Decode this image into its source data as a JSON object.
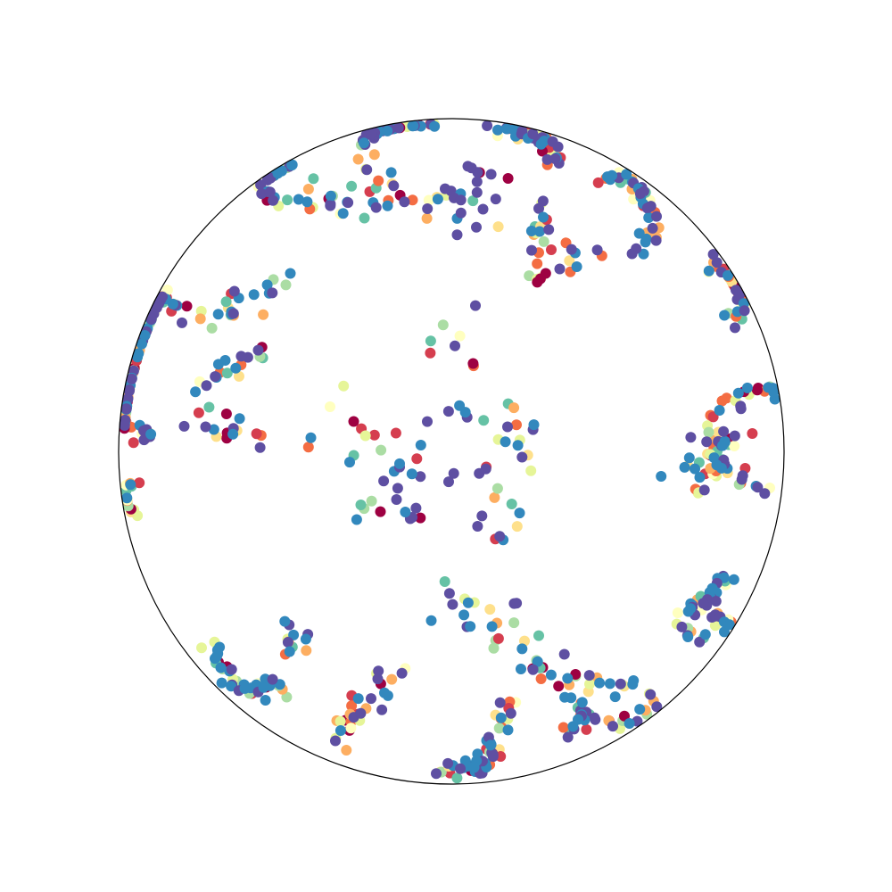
{
  "chart_data": {
    "type": "scatter",
    "title": "",
    "xlabel": "",
    "ylabel": "",
    "projection": "poincare-disk",
    "xlim": [
      -1,
      1
    ],
    "ylim": [
      -1,
      1
    ],
    "boundary": "unit-circle",
    "boundary_color": "#000000",
    "grid": false,
    "axes_visible": false,
    "legend": "none",
    "colormap": "Spectral",
    "colormap_colors": [
      "#9e0142",
      "#d53e4f",
      "#f46d43",
      "#fdae61",
      "#fee08b",
      "#ffffbf",
      "#e6f598",
      "#abdda4",
      "#66c2a5",
      "#3288bd",
      "#5e4fa2"
    ],
    "marker": "circle",
    "clusters": [
      {
        "name": "",
        "kind": "arc",
        "cx": -0.89,
        "cy": 0.26,
        "r": 0.2,
        "a0": 60,
        "a1": 270,
        "n": 90,
        "jitter": 0.018
      },
      {
        "name": "",
        "kind": "line",
        "x0": -0.73,
        "y0": 0.39,
        "x1": -0.5,
        "y1": 0.5,
        "n": 22,
        "jitter": 0.03
      },
      {
        "name": "",
        "kind": "line",
        "x0": -0.75,
        "y0": 0.2,
        "x1": -0.55,
        "y1": 0.3,
        "n": 18,
        "jitter": 0.03
      },
      {
        "name": "",
        "kind": "line",
        "x0": -0.78,
        "y0": 0.1,
        "x1": -0.58,
        "y1": 0.04,
        "n": 16,
        "jitter": 0.02
      },
      {
        "name": "",
        "kind": "arc",
        "cx": -0.49,
        "cy": 0.84,
        "r": 0.09,
        "a0": 90,
        "a1": 270,
        "n": 22,
        "jitter": 0.015
      },
      {
        "name": "",
        "kind": "line",
        "x0": -0.46,
        "y0": 0.75,
        "x1": -0.27,
        "y1": 0.74,
        "n": 18,
        "jitter": 0.03
      },
      {
        "name": "",
        "kind": "arc",
        "cx": -0.13,
        "cy": 0.84,
        "r": 0.16,
        "a0": 60,
        "a1": 160,
        "n": 34,
        "jitter": 0.012
      },
      {
        "name": "",
        "kind": "line",
        "x0": -0.25,
        "y0": 0.86,
        "x1": -0.15,
        "y1": 0.73,
        "n": 14,
        "jitter": 0.03
      },
      {
        "name": "",
        "kind": "line",
        "x0": -0.12,
        "y0": 0.77,
        "x1": 0.02,
        "y1": 0.74,
        "n": 12,
        "jitter": 0.03
      },
      {
        "name": "",
        "kind": "arc",
        "cx": 0.17,
        "cy": 0.81,
        "r": 0.16,
        "a0": 100,
        "a1": 20,
        "n": 44,
        "jitter": 0.015
      },
      {
        "name": "",
        "kind": "line",
        "x0": 0.27,
        "y0": 0.75,
        "x1": 0.26,
        "y1": 0.5,
        "n": 22,
        "jitter": 0.015
      },
      {
        "name": "",
        "kind": "line",
        "x0": 0.1,
        "y0": 0.86,
        "x1": 0.08,
        "y1": 0.67,
        "n": 16,
        "jitter": 0.04
      },
      {
        "name": "",
        "kind": "arc",
        "cx": 0.49,
        "cy": 0.71,
        "r": 0.11,
        "a0": 110,
        "a1": -60,
        "n": 42,
        "jitter": 0.015
      },
      {
        "name": "",
        "kind": "line",
        "x0": 0.41,
        "y0": 0.64,
        "x1": 0.33,
        "y1": 0.58,
        "n": 10,
        "jitter": 0.03
      },
      {
        "name": "",
        "kind": "arc",
        "cx": 0.8,
        "cy": 0.47,
        "r": 0.08,
        "a0": 110,
        "a1": -70,
        "n": 36,
        "jitter": 0.018
      },
      {
        "name": "",
        "kind": "arc",
        "cx": 0.94,
        "cy": 0.04,
        "r": 0.15,
        "a0": 70,
        "a1": 270,
        "n": 44,
        "jitter": 0.018
      },
      {
        "name": "",
        "kind": "line",
        "x0": 0.87,
        "y0": 0.04,
        "x1": 0.73,
        "y1": 0.03,
        "n": 14,
        "jitter": 0.02
      },
      {
        "name": "",
        "kind": "line",
        "x0": 0.87,
        "y0": -0.05,
        "x1": 0.7,
        "y1": -0.07,
        "n": 20,
        "jitter": 0.03
      },
      {
        "name": "",
        "kind": "arc",
        "cx": 0.84,
        "cy": -0.45,
        "r": 0.06,
        "a0": 90,
        "a1": 270,
        "n": 30,
        "jitter": 0.015
      },
      {
        "name": "",
        "kind": "arc",
        "cx": 0.76,
        "cy": -0.51,
        "r": 0.06,
        "a0": 90,
        "a1": 270,
        "n": 20,
        "jitter": 0.015
      },
      {
        "name": "",
        "kind": "arc",
        "cx": 0.49,
        "cy": -0.68,
        "r": 0.14,
        "a0": -30,
        "a1": -160,
        "n": 22,
        "jitter": 0.012
      },
      {
        "name": "",
        "kind": "line",
        "x0": 0.6,
        "y0": -0.72,
        "x1": 0.35,
        "y1": -0.69,
        "n": 16,
        "jitter": 0.02
      },
      {
        "name": "",
        "kind": "line",
        "x0": 0.35,
        "y0": -0.86,
        "x1": 0.4,
        "y1": -0.78,
        "n": 12,
        "jitter": 0.02
      },
      {
        "name": "",
        "kind": "arc",
        "cx": 0.04,
        "cy": -0.86,
        "r": 0.1,
        "a0": -90,
        "a1": -10,
        "n": 22,
        "jitter": 0.012
      },
      {
        "name": "",
        "kind": "line",
        "x0": -0.06,
        "y0": -0.96,
        "x1": 0.1,
        "y1": -0.93,
        "n": 20,
        "jitter": 0.012
      },
      {
        "name": "",
        "kind": "line",
        "x0": 0.11,
        "y0": -0.88,
        "x1": 0.19,
        "y1": -0.73,
        "n": 16,
        "jitter": 0.02
      },
      {
        "name": "",
        "kind": "line",
        "x0": -0.33,
        "y0": -0.85,
        "x1": -0.16,
        "y1": -0.66,
        "n": 30,
        "jitter": 0.025
      },
      {
        "name": "",
        "kind": "arc",
        "cx": -0.57,
        "cy": -0.58,
        "r": 0.14,
        "a0": 180,
        "a1": 300,
        "n": 40,
        "jitter": 0.015
      },
      {
        "name": "",
        "kind": "line",
        "x0": -0.52,
        "y0": -0.55,
        "x1": -0.43,
        "y1": -0.58,
        "n": 12,
        "jitter": 0.03
      },
      {
        "name": "",
        "kind": "arc",
        "cx": -0.94,
        "cy": -0.14,
        "r": 0.05,
        "a0": 90,
        "a1": 270,
        "n": 14,
        "jitter": 0.01
      },
      {
        "name": "",
        "kind": "line",
        "x0": -0.0,
        "y0": -0.45,
        "x1": 0.34,
        "y1": -0.7,
        "n": 36,
        "jitter": 0.05
      },
      {
        "name": "",
        "kind": "line",
        "x0": 0.23,
        "y0": 0.1,
        "x1": 0.13,
        "y1": -0.3,
        "n": 22,
        "jitter": 0.03
      },
      {
        "name": "",
        "kind": "blob",
        "cx": -0.2,
        "cy": -0.1,
        "rx": 0.12,
        "ry": 0.12,
        "n": 22
      },
      {
        "name": "",
        "kind": "blob",
        "cx": 0.0,
        "cy": 0.35,
        "rx": 0.08,
        "ry": 0.1,
        "n": 8
      },
      {
        "name": "",
        "kind": "blob",
        "cx": 0.05,
        "cy": 0.05,
        "rx": 0.15,
        "ry": 0.15,
        "n": 12
      },
      {
        "name": "",
        "kind": "blob",
        "cx": -0.3,
        "cy": 0.05,
        "rx": 0.2,
        "ry": 0.15,
        "n": 10
      }
    ]
  }
}
